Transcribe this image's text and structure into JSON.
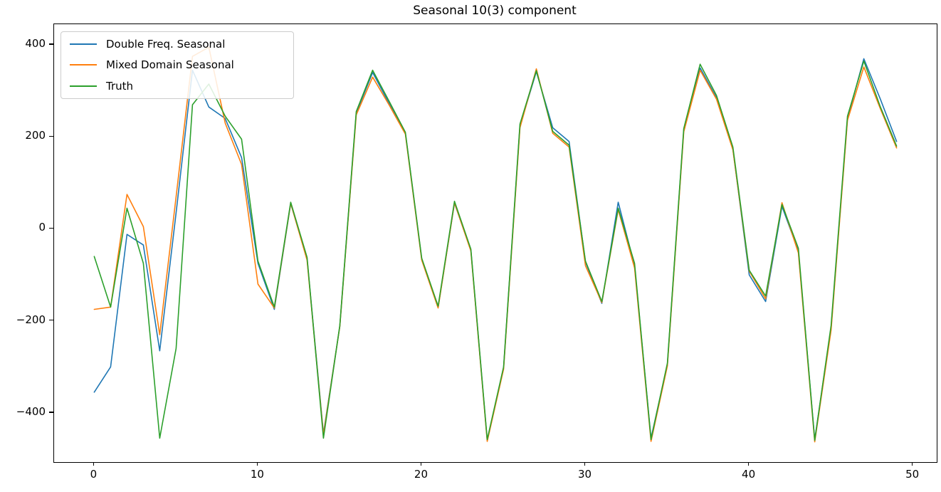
{
  "title": "Seasonal 10(3) component",
  "chart_data": {
    "type": "line",
    "x": [
      0,
      1,
      2,
      3,
      4,
      5,
      6,
      7,
      8,
      9,
      10,
      11,
      12,
      13,
      14,
      15,
      16,
      17,
      18,
      19,
      20,
      21,
      22,
      23,
      24,
      25,
      26,
      27,
      28,
      29,
      30,
      31,
      32,
      33,
      34,
      35,
      36,
      37,
      38,
      39,
      40,
      41,
      42,
      43,
      44,
      45,
      46,
      47,
      48,
      49
    ],
    "series": [
      {
        "name": "Double Freq. Seasonal",
        "color": "#1f77b4",
        "values": [
          -355,
          -300,
          -12,
          -35,
          -265,
          35,
          345,
          265,
          240,
          155,
          -75,
          -175,
          55,
          -65,
          -445,
          -212,
          252,
          340,
          273,
          208,
          -66,
          -171,
          56,
          -46,
          -460,
          -302,
          224,
          342,
          220,
          190,
          -72,
          -162,
          58,
          -80,
          -455,
          -295,
          214,
          350,
          285,
          174,
          -100,
          -158,
          49,
          -48,
          -458,
          -215,
          240,
          370,
          283,
          190
        ]
      },
      {
        "name": "Mixed Domain Seasonal",
        "color": "#ff7f0e",
        "values": [
          -175,
          -170,
          75,
          5,
          -230,
          70,
          375,
          395,
          230,
          140,
          -120,
          -172,
          56,
          -68,
          -448,
          -212,
          248,
          330,
          270,
          206,
          -68,
          -172,
          57,
          -48,
          -462,
          -305,
          220,
          348,
          208,
          178,
          -80,
          -160,
          42,
          -85,
          -462,
          -298,
          211,
          345,
          282,
          172,
          -92,
          -152,
          57,
          -52,
          -463,
          -220,
          236,
          352,
          262,
          176
        ]
      },
      {
        "name": "Truth",
        "color": "#2ca02c",
        "values": [
          -60,
          -170,
          45,
          -75,
          -455,
          -260,
          270,
          315,
          245,
          195,
          -70,
          -170,
          58,
          -62,
          -455,
          -210,
          255,
          345,
          278,
          210,
          -64,
          -168,
          60,
          -44,
          -458,
          -300,
          228,
          344,
          212,
          182,
          -70,
          -158,
          45,
          -75,
          -458,
          -292,
          218,
          358,
          290,
          178,
          -90,
          -146,
          53,
          -42,
          -460,
          -210,
          245,
          365,
          266,
          180
        ]
      }
    ],
    "title": "Seasonal 10(3) component",
    "xlabel": "",
    "ylabel": "",
    "xlim": [
      -2.45,
      51.45
    ],
    "ylim": [
      -507,
      445
    ],
    "x_ticks": [
      0,
      10,
      20,
      30,
      40,
      50
    ],
    "y_ticks": [
      -400,
      -200,
      0,
      200,
      400
    ],
    "legend_position": "upper left",
    "grid": false,
    "background": "#ffffff",
    "axes_color": "#000000"
  }
}
